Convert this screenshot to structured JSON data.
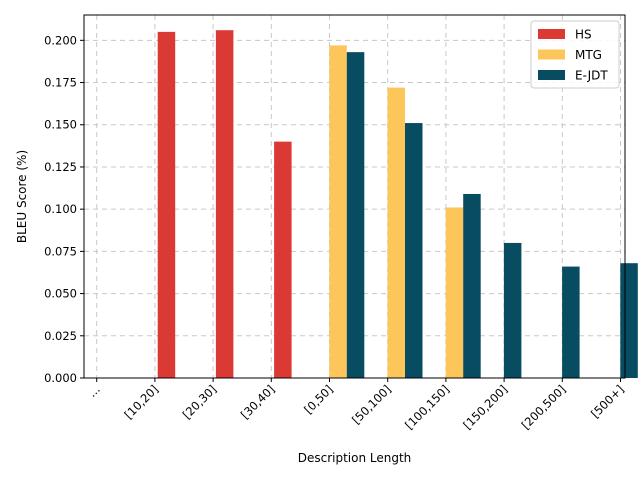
{
  "chart_data": {
    "type": "bar",
    "categories": [
      "...",
      "[10,20]",
      "[20,30]",
      "[30,40]",
      "[0,50]",
      "[50,100]",
      "[100,150]",
      "[150,200]",
      "[200,500]",
      "[500+]"
    ],
    "series": [
      {
        "name": "HS",
        "color": "#db3a34",
        "values": [
          null,
          0.205,
          0.206,
          0.14,
          null,
          null,
          null,
          null,
          null,
          null
        ]
      },
      {
        "name": "MTG",
        "color": "#fdc65a",
        "values": [
          null,
          null,
          null,
          null,
          0.197,
          0.172,
          0.101,
          null,
          null,
          null
        ]
      },
      {
        "name": "E-JDT",
        "color": "#084c61",
        "values": [
          null,
          null,
          null,
          null,
          0.193,
          0.151,
          0.109,
          0.08,
          0.066,
          0.068
        ]
      }
    ],
    "xlabel": "Description Length",
    "ylabel": "BLEU Score (%)",
    "ylim": [
      0,
      0.215
    ],
    "yticks": [
      "0.000",
      "0.025",
      "0.050",
      "0.075",
      "0.100",
      "0.125",
      "0.150",
      "0.175",
      "0.200"
    ],
    "grid": true,
    "legend_position": "top-right"
  }
}
